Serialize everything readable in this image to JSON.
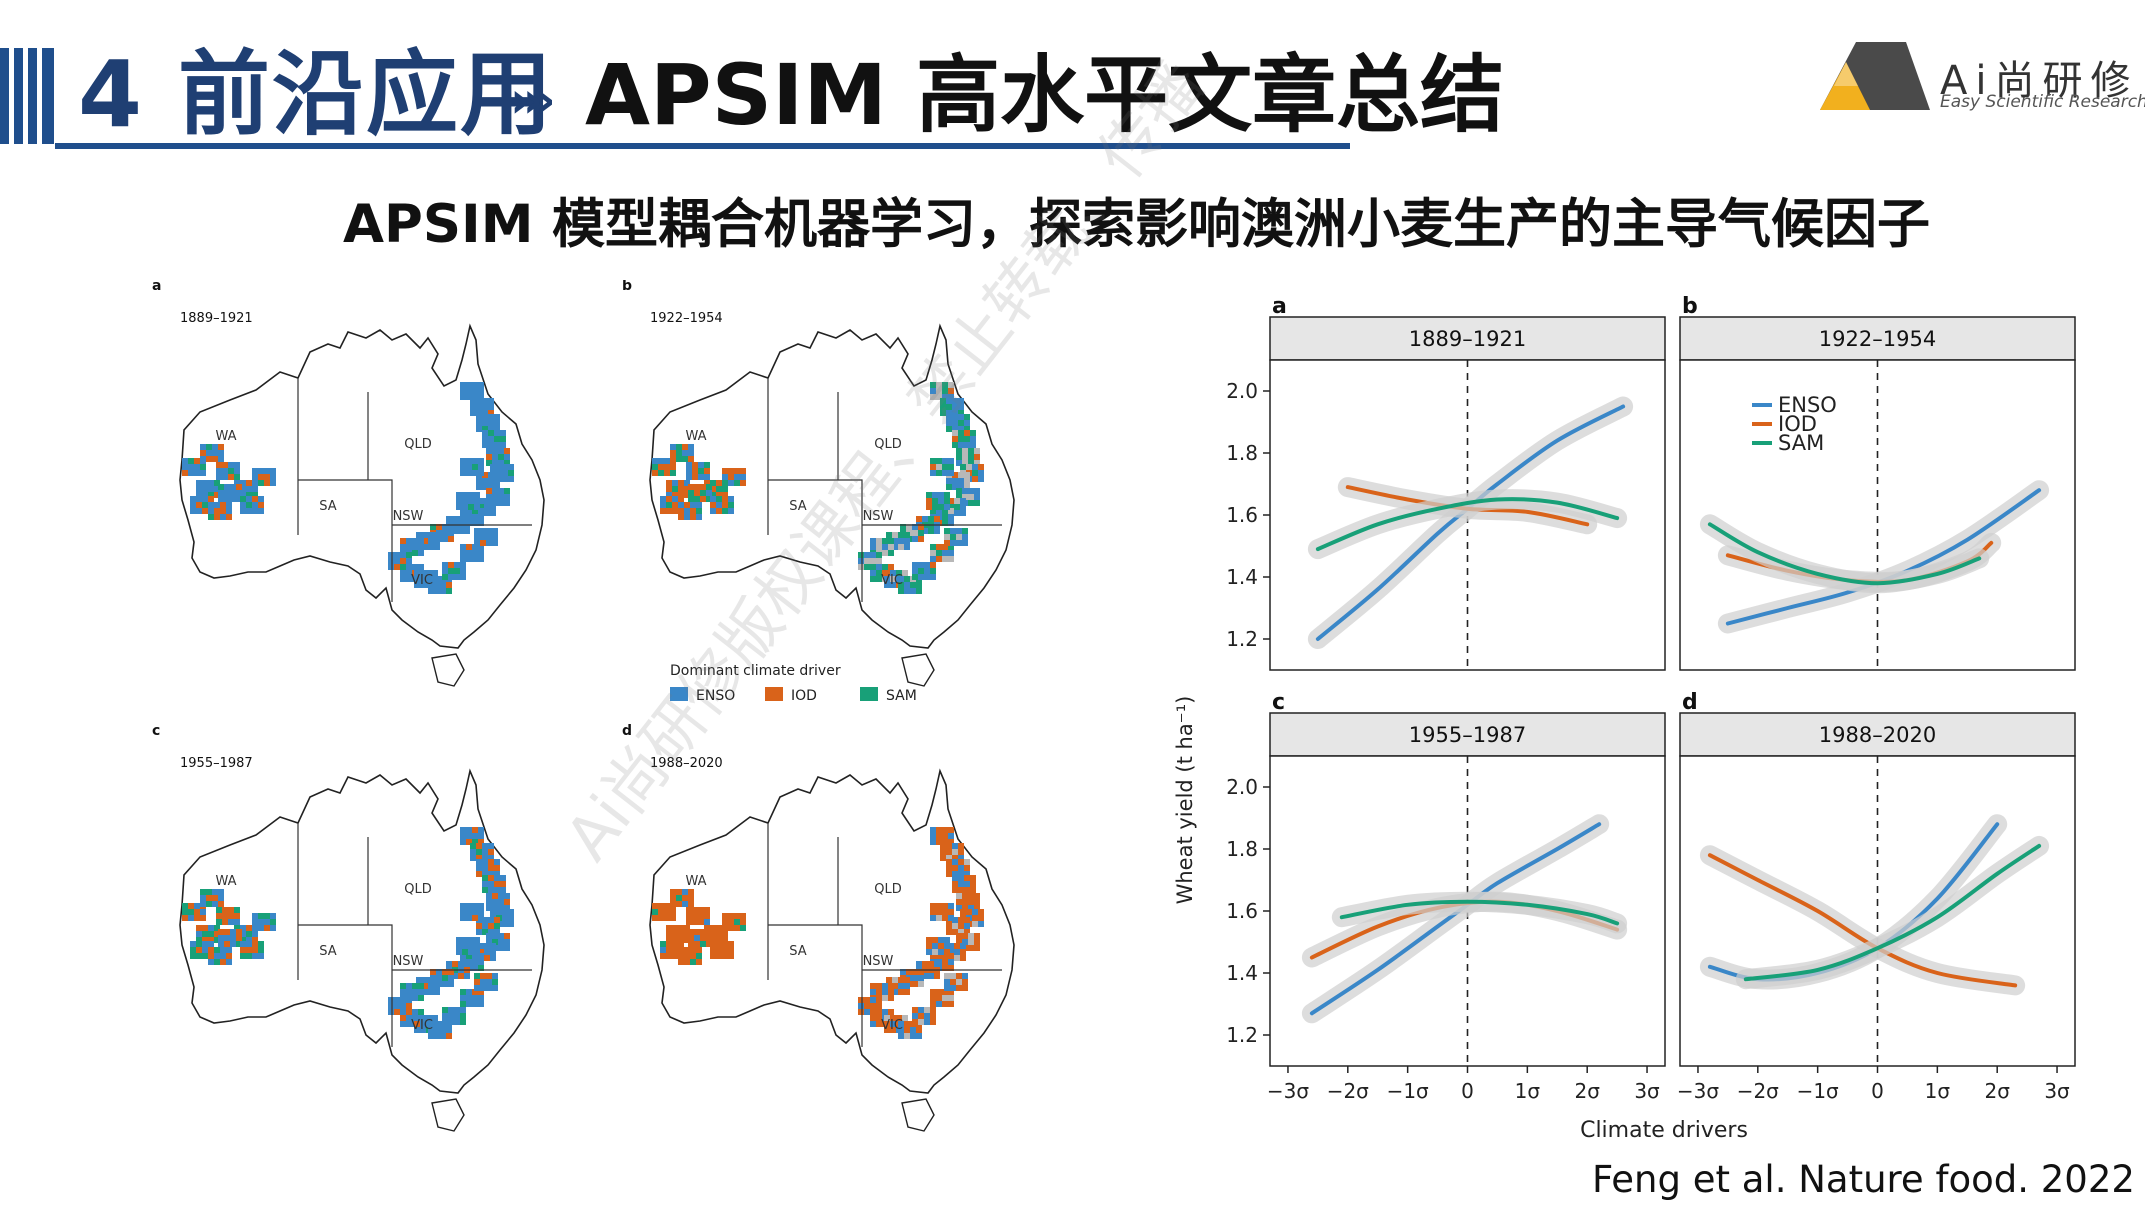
{
  "header": {
    "section_number": "4 前沿应用",
    "chevrons": "›››",
    "section_title": "APSIM 高水平文章总结",
    "subtitle": "APSIM 模型耦合机器学习，探索影响澳洲小麦生产的主导气候因子"
  },
  "logo": {
    "name": "Ai尚研修",
    "tagline": "Easy Scientific Research",
    "accent_color": "#f2b01e",
    "dark_color": "#4a4a4a"
  },
  "watermark": "Ai尚研修版权课程、禁止转载、传播",
  "credit": "Feng et al. Nature food. 2022",
  "maps": {
    "panels": [
      {
        "letter": "a",
        "period": "1889–1921"
      },
      {
        "letter": "b",
        "period": "1922–1954"
      },
      {
        "letter": "c",
        "period": "1955–1987"
      },
      {
        "letter": "d",
        "period": "1988–2020"
      }
    ],
    "states": [
      "WA",
      "SA",
      "QLD",
      "NSW",
      "VIC"
    ],
    "legend_title": "Dominant climate driver",
    "legend": [
      {
        "label": "ENSO",
        "color": "#3a87c8"
      },
      {
        "label": "IOD",
        "color": "#d9631a"
      },
      {
        "label": "SAM",
        "color": "#18a078"
      }
    ]
  },
  "chart_data": {
    "type": "line",
    "ylabel": "Wheat yield (t ha⁻¹)",
    "xlabel": "Climate drivers",
    "ylim": [
      1.1,
      2.1
    ],
    "xlim": [
      -3.3,
      3.3
    ],
    "yticks": [
      1.2,
      1.4,
      1.6,
      1.8,
      2.0
    ],
    "ytick_labels": [
      "1.2",
      "1.4",
      "1.6",
      "1.8",
      "2.0"
    ],
    "xticks": [
      -3,
      -2,
      -1,
      0,
      1,
      2,
      3
    ],
    "xtick_labels": [
      "−3σ",
      "−2σ",
      "−1σ",
      "0",
      "1σ",
      "2σ",
      "3σ"
    ],
    "legend": [
      "ENSO",
      "IOD",
      "SAM"
    ],
    "colors": {
      "ENSO": "#3a87c8",
      "IOD": "#d9631a",
      "SAM": "#18a078"
    },
    "panels": [
      {
        "letter": "a",
        "title": "1889–1921",
        "series": [
          {
            "name": "ENSO",
            "x": [
              -2.5,
              -1.5,
              -0.5,
              0,
              0.5,
              1.5,
              2.6
            ],
            "y": [
              1.2,
              1.36,
              1.54,
              1.62,
              1.7,
              1.84,
              1.95
            ]
          },
          {
            "name": "IOD",
            "x": [
              -2.0,
              -1.0,
              0,
              1.0,
              2.0
            ],
            "y": [
              1.69,
              1.65,
              1.62,
              1.61,
              1.57
            ]
          },
          {
            "name": "SAM",
            "x": [
              -2.5,
              -1.5,
              -0.5,
              0.5,
              1.5,
              2.5
            ],
            "y": [
              1.49,
              1.57,
              1.62,
              1.65,
              1.64,
              1.59
            ]
          }
        ]
      },
      {
        "letter": "b",
        "title": "1922–1954",
        "series": [
          {
            "name": "ENSO",
            "x": [
              -2.5,
              -1.5,
              -0.5,
              0.5,
              1.5,
              2.7
            ],
            "y": [
              1.25,
              1.3,
              1.35,
              1.42,
              1.52,
              1.68
            ]
          },
          {
            "name": "IOD",
            "x": [
              -2.5,
              -1.5,
              -0.5,
              0.5,
              1.5,
              1.9
            ],
            "y": [
              1.47,
              1.42,
              1.39,
              1.39,
              1.45,
              1.51
            ]
          },
          {
            "name": "SAM",
            "x": [
              -2.8,
              -2.0,
              -1.0,
              0,
              1.0,
              1.7
            ],
            "y": [
              1.57,
              1.48,
              1.41,
              1.38,
              1.41,
              1.46
            ]
          }
        ]
      },
      {
        "letter": "c",
        "title": "1955–1987",
        "series": [
          {
            "name": "ENSO",
            "x": [
              -2.6,
              -1.5,
              -0.5,
              0,
              0.5,
              1.5,
              2.2
            ],
            "y": [
              1.27,
              1.41,
              1.55,
              1.62,
              1.69,
              1.8,
              1.88
            ]
          },
          {
            "name": "IOD",
            "x": [
              -2.6,
              -1.5,
              -0.5,
              0.5,
              1.5,
              2.5
            ],
            "y": [
              1.45,
              1.55,
              1.61,
              1.63,
              1.6,
              1.54
            ]
          },
          {
            "name": "SAM",
            "x": [
              -2.1,
              -1.0,
              0,
              1.0,
              2.0,
              2.5
            ],
            "y": [
              1.58,
              1.62,
              1.63,
              1.62,
              1.59,
              1.56
            ]
          }
        ]
      },
      {
        "letter": "d",
        "title": "1988–2020",
        "series": [
          {
            "name": "ENSO",
            "x": [
              -2.8,
              -2.0,
              -1.0,
              0,
              1.0,
              2.0
            ],
            "y": [
              1.42,
              1.38,
              1.4,
              1.48,
              1.64,
              1.88
            ]
          },
          {
            "name": "IOD",
            "x": [
              -2.8,
              -2.0,
              -1.0,
              0,
              1.0,
              2.3
            ],
            "y": [
              1.78,
              1.7,
              1.6,
              1.48,
              1.4,
              1.36
            ]
          },
          {
            "name": "SAM",
            "x": [
              -2.2,
              -1.0,
              0,
              1.0,
              2.0,
              2.7
            ],
            "y": [
              1.38,
              1.41,
              1.48,
              1.58,
              1.72,
              1.81
            ]
          }
        ]
      }
    ]
  }
}
